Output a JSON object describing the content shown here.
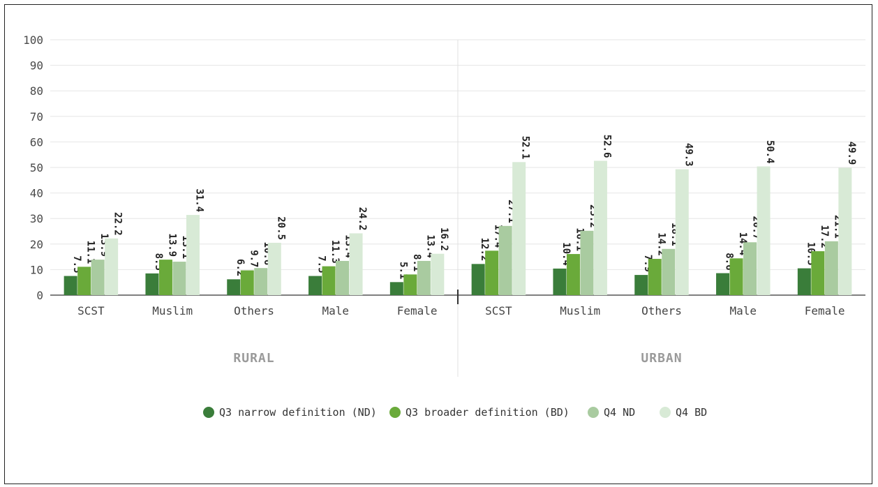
{
  "chart_data": {
    "type": "bar",
    "ylim": [
      0,
      100
    ],
    "yticks": [
      0,
      10,
      20,
      30,
      40,
      50,
      60,
      70,
      80,
      90,
      100
    ],
    "grid": true,
    "legend_position": "bottom",
    "groups": [
      {
        "name": "RURAL",
        "categories": [
          "SCST",
          "Muslim",
          "Others",
          "Male",
          "Female"
        ]
      },
      {
        "name": "URBAN",
        "categories": [
          "SCST",
          "Muslim",
          "Others",
          "Male",
          "Female"
        ]
      }
    ],
    "series": [
      {
        "name": "Q3 narrow definition (ND)",
        "color": "#3a7d3a",
        "values": [
          7.5,
          8.5,
          6.2,
          7.5,
          5.1,
          12.2,
          10.4,
          7.9,
          8.6,
          10.5
        ],
        "labels": [
          "7.5",
          "8.5",
          "6.2",
          "7.5",
          "5.1",
          "12.2",
          "10.4",
          "7.9",
          "8.6",
          "10.5"
        ]
      },
      {
        "name": "Q3 broader definition (BD)",
        "color": "#6aaa3a",
        "values": [
          11.1,
          13.9,
          9.7,
          11.3,
          8.1,
          17.4,
          16.1,
          14.2,
          14.4,
          17.2
        ],
        "labels": [
          "11.1",
          "13.9",
          "9.7",
          "11.3",
          "8.1",
          "17.4",
          "16.1",
          "14.2",
          "14.4",
          "17.2"
        ]
      },
      {
        "name": "Q4 ND",
        "color": "#a9cba0",
        "values": [
          13.9,
          13.1,
          10.6,
          13.4,
          13.4,
          27.1,
          25.2,
          18.1,
          20.7,
          21.1
        ],
        "labels": [
          "13.9",
          "13.1",
          "10.6",
          "13.4",
          "13.4",
          "27.1",
          "25.2",
          "18.1",
          "20.7",
          "21.1"
        ]
      },
      {
        "name": "Q4 BD",
        "color": "#d8ead6",
        "values": [
          22.2,
          31.4,
          20.5,
          24.2,
          16.2,
          52.1,
          52.6,
          49.3,
          50.4,
          49.9
        ],
        "labels": [
          "22.2",
          "31.4",
          "20.5",
          "24.2",
          "16.2",
          "52.1",
          "52.6",
          "49.3",
          "50.4",
          "49.9"
        ]
      }
    ]
  }
}
